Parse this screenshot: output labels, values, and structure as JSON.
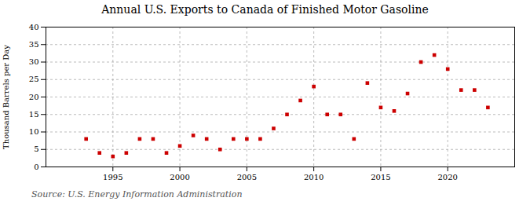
{
  "chart_data": {
    "type": "scatter",
    "title": "Annual U.S. Exports to Canada of Finished Motor Gasoline",
    "ylabel": "Thousand Barrels per Day",
    "source": "Source: U.S. Energy Information Administration",
    "x": [
      1993,
      1994,
      1995,
      1996,
      1997,
      1998,
      1999,
      2000,
      2001,
      2002,
      2003,
      2004,
      2005,
      2006,
      2007,
      2008,
      2009,
      2010,
      2011,
      2012,
      2013,
      2014,
      2015,
      2016,
      2017,
      2018,
      2019,
      2020,
      2021,
      2022,
      2023
    ],
    "values": [
      8,
      4,
      3,
      4,
      8,
      8,
      4,
      6,
      9,
      8,
      5,
      8,
      8,
      8,
      11,
      15,
      19,
      23,
      15,
      15,
      8,
      24,
      17,
      16,
      21,
      30,
      32,
      28,
      22,
      22,
      17
    ],
    "color": "#cc0000",
    "marker": "square",
    "xlim": [
      1990,
      2025
    ],
    "xticks": [
      1995,
      2000,
      2005,
      2010,
      2015,
      2020
    ],
    "ylim": [
      0,
      40
    ],
    "yticks": [
      0,
      5,
      10,
      15,
      20,
      25,
      30,
      35,
      40
    ],
    "grid": true
  }
}
